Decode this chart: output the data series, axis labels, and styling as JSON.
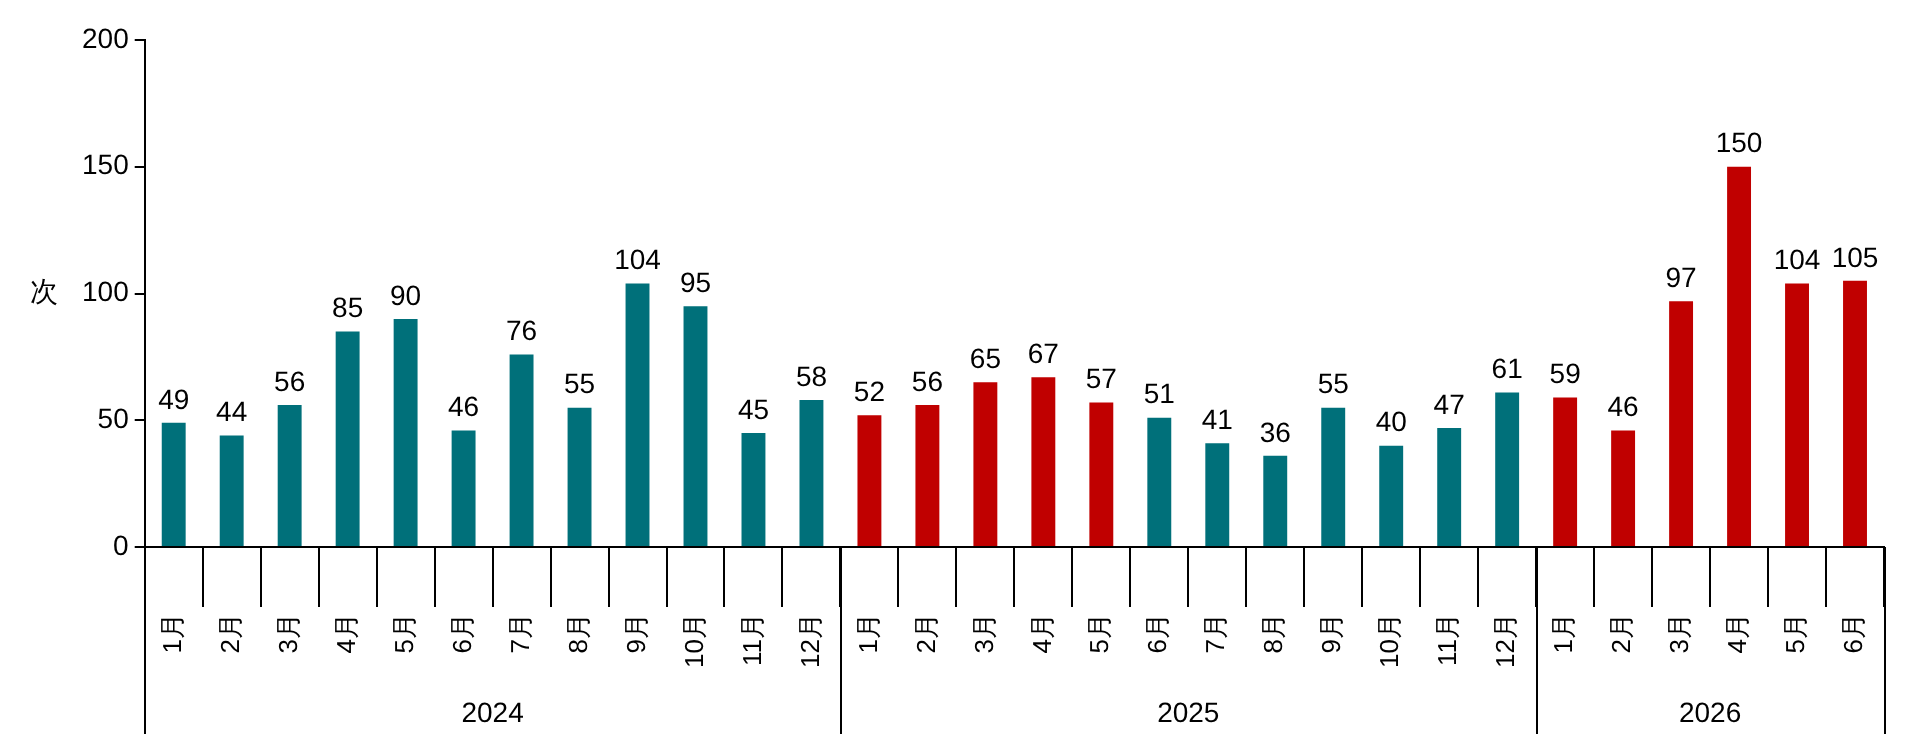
{
  "chart_data": {
    "type": "bar",
    "ylabel": "次",
    "categories": [
      "1月",
      "2月",
      "3月",
      "4月",
      "5月",
      "6月",
      "7月",
      "8月",
      "9月",
      "10月",
      "11月",
      "12月",
      "1月",
      "2月",
      "3月",
      "4月",
      "5月",
      "6月",
      "7月",
      "8月",
      "9月",
      "10月",
      "11月",
      "12月",
      "1月",
      "2月",
      "3月",
      "4月",
      "5月",
      "6月"
    ],
    "values": [
      49,
      44,
      56,
      85,
      90,
      46,
      76,
      55,
      104,
      95,
      45,
      58,
      52,
      56,
      65,
      67,
      57,
      51,
      41,
      36,
      55,
      40,
      47,
      61,
      59,
      46,
      97,
      150,
      104,
      105
    ],
    "colors": [
      "#00707a",
      "#00707a",
      "#00707a",
      "#00707a",
      "#00707a",
      "#00707a",
      "#00707a",
      "#00707a",
      "#00707a",
      "#00707a",
      "#00707a",
      "#00707a",
      "#c00000",
      "#c00000",
      "#c00000",
      "#c00000",
      "#c00000",
      "#00707a",
      "#00707a",
      "#00707a",
      "#00707a",
      "#00707a",
      "#00707a",
      "#00707a",
      "#c00000",
      "#c00000",
      "#c00000",
      "#c00000",
      "#c00000",
      "#c00000"
    ],
    "annotations": [
      "2024",
      "2025",
      "2026"
    ],
    "ylim": [
      0,
      200
    ],
    "yticks": [
      0,
      50,
      100,
      150,
      200
    ],
    "grid": false,
    "legend": false,
    "data_labels": true
  }
}
